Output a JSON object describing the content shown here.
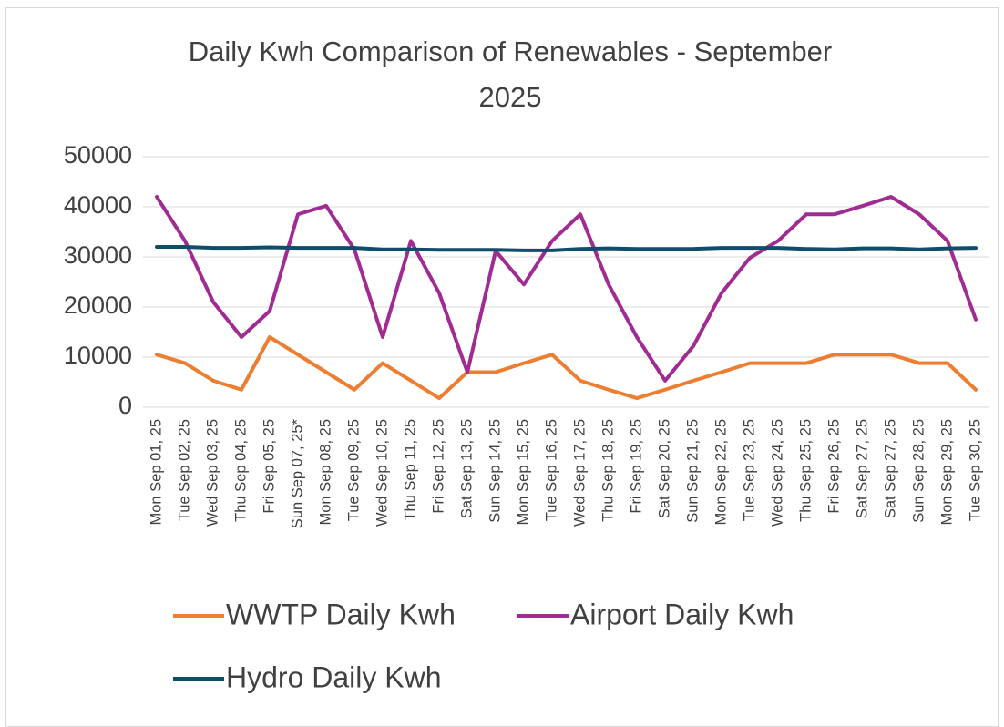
{
  "chart_data": {
    "type": "line",
    "title": "Daily Kwh Comparison of Renewables - September 2025",
    "categories": [
      "Mon Sep 01, 25",
      "Tue Sep 02, 25",
      "Wed Sep 03, 25",
      "Thu Sep 04, 25",
      "Fri Sep 05, 25",
      "Sun Sep 07, 25*",
      "Mon Sep 08, 25",
      "Tue Sep 09, 25",
      "Wed Sep 10, 25",
      "Thu Sep 11, 25",
      "Fri Sep 12, 25",
      "Sat Sep 13, 25",
      "Sun Sep 14, 25",
      "Mon Sep 15, 25",
      "Tue Sep 16, 25",
      "Wed Sep 17, 25",
      "Thu Sep 18, 25",
      "Fri Sep 19, 25",
      "Sat Sep 20, 25",
      "Sun Sep 21, 25",
      "Mon Sep 22, 25",
      "Tue Sep 23, 25",
      "Wed Sep 24, 25",
      "Thu Sep 25, 25",
      "Fri Sep 26, 25",
      "Sat Sep 27, 25",
      "Sat Sep 27, 25",
      "Sun Sep 28, 25",
      "Mon Sep 29, 25",
      "Tue Sep 30, 25"
    ],
    "series": [
      {
        "name": "WWTP Daily Kwh",
        "color": "#ed7d31",
        "values": [
          10500,
          8800,
          5300,
          3500,
          14000,
          10500,
          7000,
          3500,
          8800,
          5300,
          1800,
          7000,
          7000,
          8800,
          10500,
          5300,
          3500,
          1800,
          3500,
          5300,
          7000,
          8800,
          8800,
          8800,
          10500,
          10500,
          10500,
          8800,
          8800,
          3500
        ]
      },
      {
        "name": "Airport Daily Kwh",
        "color": "#a02b93",
        "values": [
          42000,
          33200,
          21000,
          14000,
          19200,
          38500,
          40200,
          31500,
          14000,
          33200,
          22800,
          7000,
          31200,
          24500,
          33200,
          38500,
          24500,
          14000,
          5300,
          12200,
          22800,
          29800,
          33200,
          38500,
          38500,
          40200,
          42000,
          38500,
          33200,
          17500
        ]
      },
      {
        "name": "Hydro Daily Kwh",
        "color": "#0f4d6b",
        "values": [
          32000,
          32000,
          31800,
          31800,
          31900,
          31800,
          31800,
          31800,
          31500,
          31500,
          31400,
          31400,
          31400,
          31300,
          31300,
          31600,
          31700,
          31600,
          31600,
          31600,
          31800,
          31800,
          31800,
          31600,
          31500,
          31700,
          31700,
          31500,
          31700,
          31800
        ]
      }
    ],
    "ylim": [
      0,
      50000
    ],
    "yticks": [
      0,
      10000,
      20000,
      30000,
      40000,
      50000
    ],
    "grid": true,
    "legend": "bottom"
  }
}
